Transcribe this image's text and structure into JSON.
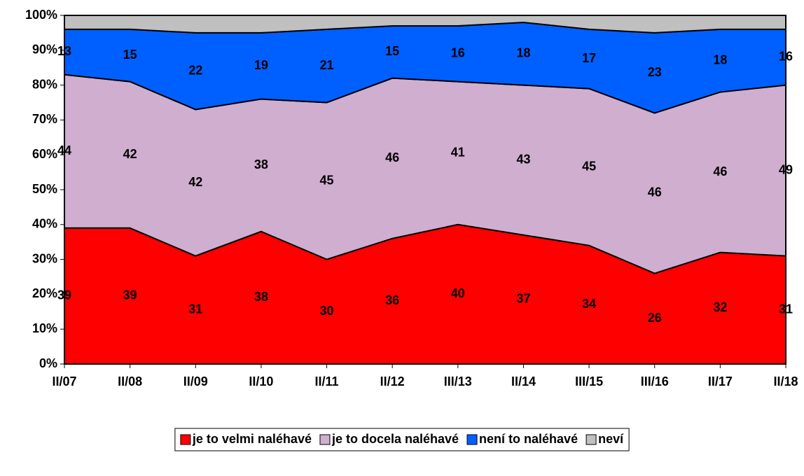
{
  "chart_data": {
    "type": "stacked-area",
    "categories": [
      "II/07",
      "II/08",
      "II/09",
      "II/10",
      "II/11",
      "II/12",
      "III/13",
      "II/14",
      "III/15",
      "III/16",
      "II/17",
      "II/18"
    ],
    "series": [
      {
        "name": "je to velmi naléhavé",
        "color": "#ff0000",
        "values": [
          39,
          39,
          31,
          38,
          30,
          36,
          40,
          37,
          34,
          26,
          32,
          31
        ]
      },
      {
        "name": "je to docela naléhavé",
        "color": "#d0aed0",
        "values": [
          44,
          42,
          42,
          38,
          45,
          46,
          41,
          43,
          45,
          46,
          46,
          49
        ]
      },
      {
        "name": "není to naléhavé",
        "color": "#0060ff",
        "values": [
          13,
          15,
          22,
          19,
          21,
          15,
          16,
          18,
          17,
          23,
          18,
          16
        ]
      },
      {
        "name": "neví",
        "color": "#c0c0c0",
        "values": [
          4,
          4,
          5,
          5,
          4,
          3,
          3,
          2,
          4,
          5,
          4,
          4
        ]
      }
    ],
    "labeled_series": [
      0,
      1,
      2
    ],
    "ylim": [
      0,
      100
    ],
    "yticks": [
      {
        "value": 0,
        "label": "0%"
      },
      {
        "value": 10,
        "label": "10%"
      },
      {
        "value": 20,
        "label": "20%"
      },
      {
        "value": 30,
        "label": "30%"
      },
      {
        "value": 40,
        "label": "40%"
      },
      {
        "value": 50,
        "label": "50%"
      },
      {
        "value": 60,
        "label": "60%"
      },
      {
        "value": 70,
        "label": "70%"
      },
      {
        "value": 80,
        "label": "80%"
      },
      {
        "value": 90,
        "label": "90%"
      },
      {
        "value": 100,
        "label": "100%"
      }
    ],
    "legend": "bottom"
  }
}
